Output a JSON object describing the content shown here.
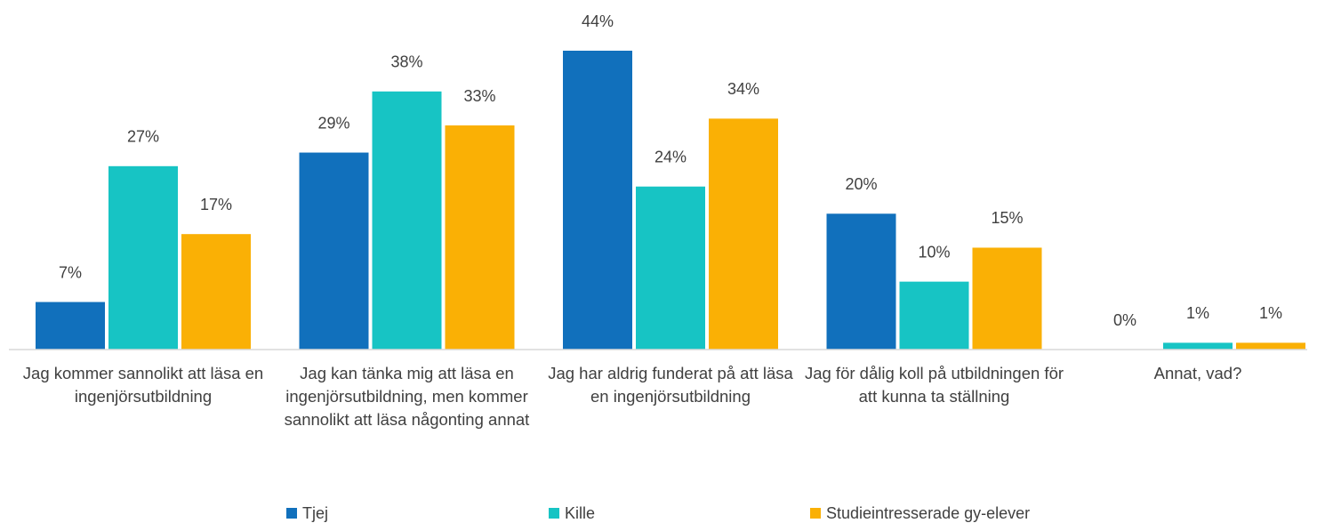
{
  "chart_data": {
    "type": "bar",
    "categories": [
      "Jag kommer sannolikt att läsa en ingenjörsutbildning",
      "Jag kan tänka mig att läsa en ingenjörsutbildning, men kommer sannolikt att läsa någonting annat",
      "Jag har aldrig funderat på att läsa en ingenjörsutbildning",
      "Jag för dålig koll på utbildningen för att kunna ta ställning",
      "Annat, vad?"
    ],
    "series": [
      {
        "name": "Tjej",
        "color": "#1170bc",
        "values": [
          7,
          29,
          44,
          20,
          0
        ],
        "value_labels": [
          "7%",
          "29%",
          "44%",
          "20%",
          "0%"
        ]
      },
      {
        "name": "Kille",
        "color": "#17c4c4",
        "values": [
          27,
          38,
          24,
          10,
          1
        ],
        "value_labels": [
          "27%",
          "38%",
          "24%",
          "10%",
          "1%"
        ]
      },
      {
        "name": "Studieintresserade gy-elever",
        "color": "#fab005",
        "values": [
          17,
          33,
          34,
          15,
          1
        ],
        "value_labels": [
          "17%",
          "33%",
          "34%",
          "15%",
          "1%"
        ]
      }
    ]
  }
}
